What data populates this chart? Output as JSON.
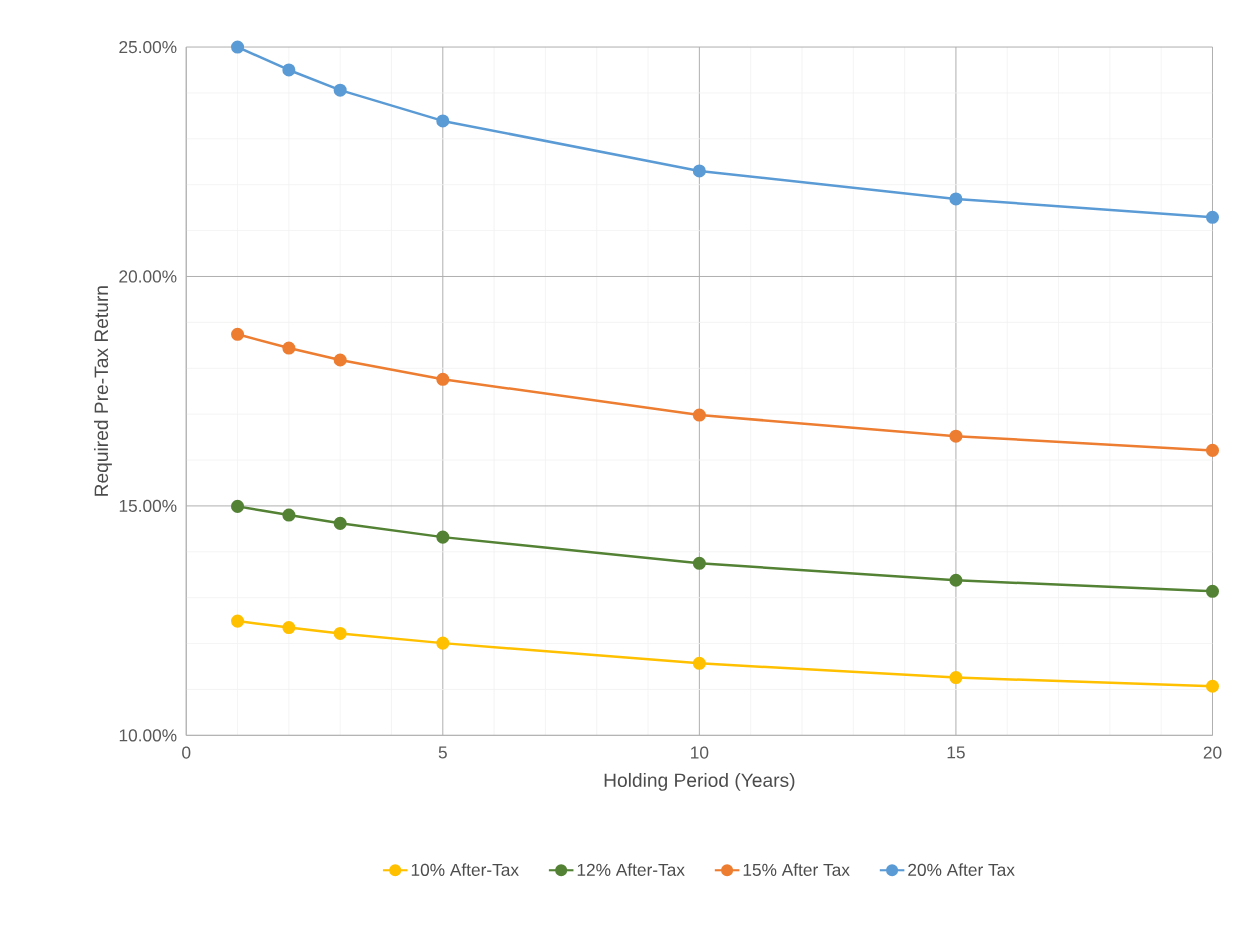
{
  "chart_data": {
    "type": "line",
    "xlabel": "Holding Period (Years)",
    "ylabel": "Required Pre-Tax Return",
    "xlim": [
      0,
      20
    ],
    "xticks": [
      0,
      5,
      10,
      15,
      20
    ],
    "ylim": [
      10,
      25
    ],
    "yticks": [
      {
        "value": 10,
        "label": "10.00%"
      },
      {
        "value": 15,
        "label": "15.00%"
      },
      {
        "value": 20,
        "label": "20.00%"
      },
      {
        "value": 25,
        "label": "25.00%"
      }
    ],
    "grid": true,
    "legend": "bottom",
    "marker": "circle",
    "line_style": "solid",
    "x": [
      1,
      2,
      3,
      5,
      10,
      15,
      20
    ],
    "series": [
      {
        "name": "10% After-Tax",
        "color": "#ffc000",
        "values": [
          12.49,
          12.35,
          12.22,
          12.01,
          11.57,
          11.26,
          11.07
        ]
      },
      {
        "name": "12% After-Tax",
        "color": "#548235",
        "values": [
          14.99,
          14.8,
          14.62,
          14.32,
          13.75,
          13.38,
          13.14
        ]
      },
      {
        "name": "15% After Tax",
        "color": "#ed7d31",
        "values": [
          18.74,
          18.44,
          18.18,
          17.76,
          16.98,
          16.52,
          16.21
        ]
      },
      {
        "name": "20% After Tax",
        "color": "#5b9bd5",
        "values": [
          25.0,
          24.5,
          24.06,
          23.39,
          22.3,
          21.69,
          21.29
        ]
      }
    ]
  }
}
